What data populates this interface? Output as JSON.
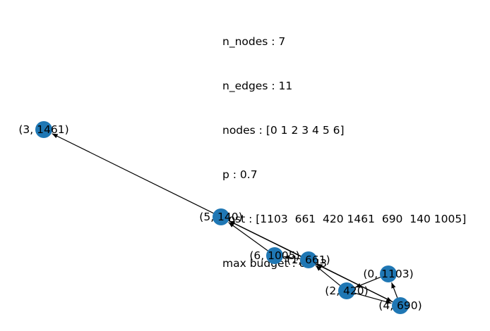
{
  "info_lines": [
    "n_nodes : 7",
    "n_edges : 11",
    "nodes : [0 1 2 3 4 5 6]",
    "p : 0.7",
    "cost : [1103  661  420 1461  690  140 1005]",
    "max budget : 8043"
  ],
  "node_color": "#1f77b4",
  "edge_color": "#000000",
  "nodes": [
    {
      "id": "0",
      "label": "(0, 1103)"
    },
    {
      "id": "1",
      "label": "(1, 661)"
    },
    {
      "id": "2",
      "label": "(2, 420)"
    },
    {
      "id": "3",
      "label": "(3, 1461)"
    },
    {
      "id": "4",
      "label": "(4, 690)"
    },
    {
      "id": "5",
      "label": "(5, 140)"
    },
    {
      "id": "6",
      "label": "(6, 1005)"
    }
  ],
  "edges": [
    {
      "from": "5",
      "to": "3"
    },
    {
      "from": "6",
      "to": "5"
    },
    {
      "from": "1",
      "to": "5"
    },
    {
      "from": "4",
      "to": "5"
    },
    {
      "from": "5",
      "to": "4"
    },
    {
      "from": "2",
      "to": "1"
    },
    {
      "from": "1",
      "to": "6"
    },
    {
      "from": "4",
      "to": "1"
    },
    {
      "from": "0",
      "to": "2"
    },
    {
      "from": "2",
      "to": "4"
    },
    {
      "from": "4",
      "to": "0"
    }
  ]
}
